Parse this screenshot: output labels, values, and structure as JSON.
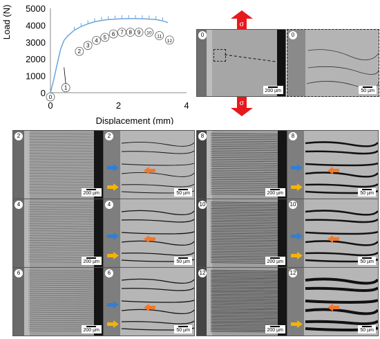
{
  "chart_data": {
    "type": "line",
    "xlabel": "Displacement  (mm)",
    "ylabel": "Load (N)",
    "xlim": [
      0,
      4
    ],
    "ylim": [
      0,
      5000
    ],
    "x_ticks": [
      "0",
      "2",
      "4"
    ],
    "y_ticks": [
      "0",
      "1000",
      "2000",
      "3000",
      "4000",
      "5000"
    ],
    "grid": false,
    "series": [
      {
        "color": "#6aa3dc",
        "x": [
          0,
          0.1,
          0.2,
          0.3,
          0.4,
          0.5,
          0.7,
          0.9,
          1.1,
          1.3,
          1.5,
          1.7,
          1.9,
          2.1,
          2.3,
          2.5,
          2.7,
          2.9,
          3.1,
          3.3,
          3.45
        ],
        "y": [
          0,
          800,
          1700,
          2600,
          3100,
          3350,
          3700,
          3920,
          4080,
          4200,
          4280,
          4330,
          4360,
          4380,
          4390,
          4390,
          4380,
          4360,
          4330,
          4260,
          4150
        ]
      }
    ],
    "annotations": [
      {
        "label": "0",
        "x": 0.0,
        "y": -250
      },
      {
        "label": "1",
        "x": 0.45,
        "y": 300
      },
      {
        "label": "2",
        "x": 0.85,
        "y": 2450
      },
      {
        "label": "3",
        "x": 1.1,
        "y": 2800
      },
      {
        "label": "4",
        "x": 1.35,
        "y": 3100
      },
      {
        "label": "5",
        "x": 1.6,
        "y": 3280
      },
      {
        "label": "6",
        "x": 1.85,
        "y": 3480
      },
      {
        "label": "7",
        "x": 2.1,
        "y": 3580
      },
      {
        "label": "8",
        "x": 2.35,
        "y": 3580
      },
      {
        "label": "9",
        "x": 2.6,
        "y": 3580
      },
      {
        "label": "10",
        "x": 2.9,
        "y": 3580
      },
      {
        "label": "11",
        "x": 3.2,
        "y": 3380
      },
      {
        "label": "12",
        "x": 3.5,
        "y": 3120
      }
    ]
  },
  "top_right": {
    "overview_badge": "0",
    "overview_scale": "200 µm",
    "zoom_badge": "0",
    "zoom_scale": "50 µm",
    "stress_symbol": "σ",
    "colors": {
      "stress_arrow": "#e8191c",
      "dashed_box": "#222222"
    }
  },
  "grid_panels": [
    {
      "badge": "2",
      "scale": "200 µm",
      "kind": "low"
    },
    {
      "badge": "2",
      "scale": "50 µm",
      "kind": "high"
    },
    {
      "badge": "8",
      "scale": "200 µm",
      "kind": "low"
    },
    {
      "badge": "8",
      "scale": "50 µm",
      "kind": "high"
    },
    {
      "badge": "4",
      "scale": "200 µm",
      "kind": "low"
    },
    {
      "badge": "4",
      "scale": "50 µm",
      "kind": "high"
    },
    {
      "badge": "10",
      "scale": "200 µm",
      "kind": "low"
    },
    {
      "badge": "10",
      "scale": "50 µm",
      "kind": "high"
    },
    {
      "badge": "6",
      "scale": "200 µm",
      "kind": "low"
    },
    {
      "badge": "6",
      "scale": "50 µm",
      "kind": "high"
    },
    {
      "badge": "12",
      "scale": "200 µm",
      "kind": "low"
    },
    {
      "badge": "12",
      "scale": "50 µm",
      "kind": "high"
    }
  ],
  "arrow_colors": {
    "blue": "#2f7fd6",
    "orange": "#f0782d",
    "yellow": "#f4b400"
  }
}
